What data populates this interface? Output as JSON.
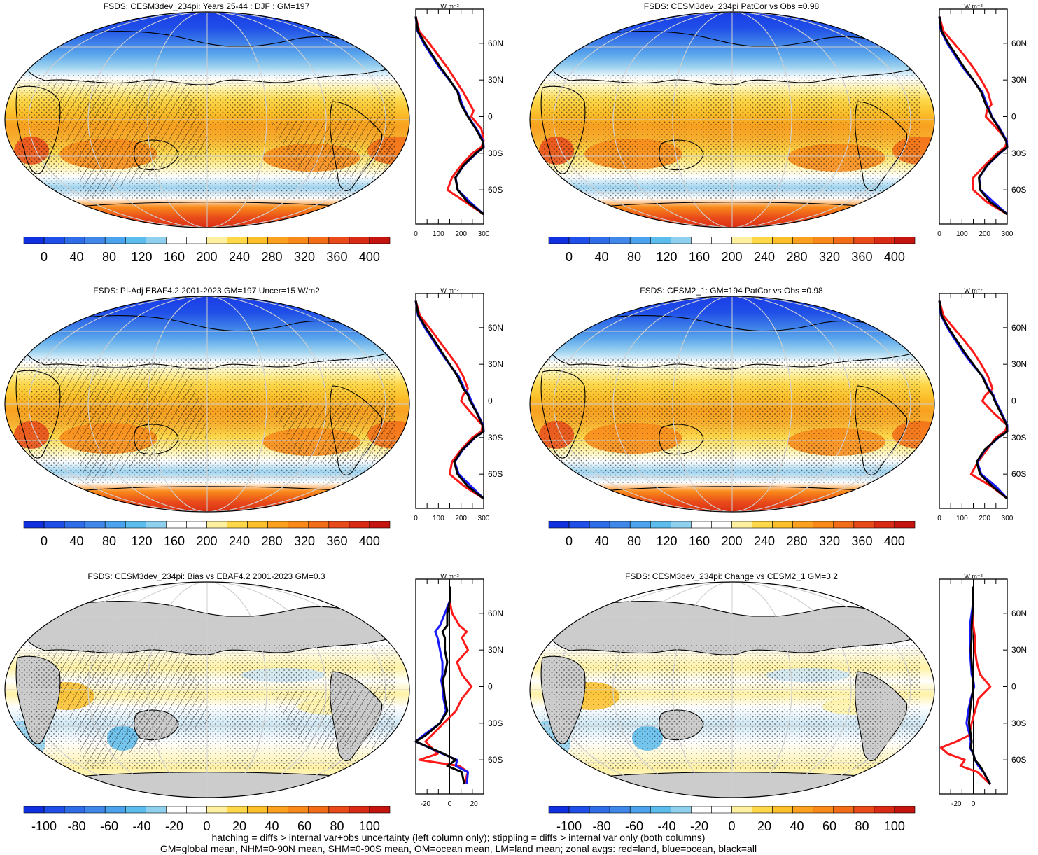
{
  "footer": {
    "line1": "hatching = diffs > internal var+obs uncertainty (left column only); stippling = diffs > internal var only (both columns)",
    "line2": "GM=global mean, NHM=0-90N mean, SHM=0-90S mean, OM=ocean mean, LM=land mean; zonal avgs: red=land, blue=ocean, black=all"
  },
  "units_label": "W m⁻²",
  "lat_labels": [
    "60N",
    "30N",
    "0",
    "30S",
    "60S"
  ],
  "colors": {
    "land": "#ff1a1a",
    "ocean": "#1a1aff",
    "all": "#000000",
    "missing": "#cccccc",
    "abs_scale": [
      "#1030e0",
      "#1f4fe8",
      "#2f6ce8",
      "#3f88ea",
      "#4aa3ec",
      "#5cbcec",
      "#8fd0ee",
      "#ffffff",
      "#ffffff",
      "#fff0a0",
      "#ffd84a",
      "#fdc02a",
      "#fca020",
      "#f98a1a",
      "#f36c18",
      "#e84a1a",
      "#d82a14",
      "#c41410"
    ],
    "diff_scale": [
      "#1030e0",
      "#1f4fe8",
      "#2f6ce8",
      "#3f88ea",
      "#4aa3ec",
      "#5cbcec",
      "#8fd0ee",
      "#ffffff",
      "#ffffff",
      "#fff0a0",
      "#ffd84a",
      "#fdc02a",
      "#fca020",
      "#f98a1a",
      "#f36c18",
      "#e84a1a",
      "#d82a14",
      "#c41410"
    ]
  },
  "chart_data": [
    {
      "type": "heatmap",
      "title": "FSDS: CESM3dev_234pi: Years 25-44 : DJF : GM=197",
      "colorbar_labels": [
        "0",
        "40",
        "80",
        "120",
        "160",
        "200",
        "240",
        "280",
        "320",
        "360",
        "400"
      ],
      "zonal": {
        "type": "line",
        "xticks": [
          "0",
          "100",
          "200",
          "300"
        ],
        "xlim": [
          0,
          300
        ],
        "lat": [
          82,
          70,
          60,
          50,
          40,
          30,
          20,
          10,
          5,
          0,
          -10,
          -20,
          -25,
          -30,
          -40,
          -50,
          -60,
          -70,
          -80
        ],
        "all": [
          0,
          10,
          40,
          75,
          110,
          150,
          185,
          200,
          215,
          230,
          265,
          295,
          300,
          265,
          210,
          175,
          185,
          230,
          300
        ],
        "ocean": [
          0,
          8,
          35,
          70,
          105,
          148,
          188,
          205,
          218,
          232,
          268,
          298,
          300,
          268,
          212,
          176,
          186,
          240,
          300
        ],
        "land": [
          0,
          15,
          60,
          100,
          140,
          175,
          210,
          240,
          255,
          245,
          290,
          300,
          290,
          250,
          200,
          160,
          140,
          220,
          300
        ]
      }
    },
    {
      "type": "heatmap",
      "title": "FSDS: CESM3dev_234pi PatCor vs Obs =0.98",
      "colorbar_labels": [
        "0",
        "40",
        "80",
        "120",
        "160",
        "200",
        "240",
        "280",
        "320",
        "360",
        "400"
      ],
      "zonal": {
        "type": "line",
        "xticks": [
          "0",
          "100",
          "200",
          "300"
        ],
        "xlim": [
          0,
          300
        ],
        "lat": [
          82,
          70,
          60,
          50,
          40,
          30,
          20,
          10,
          5,
          0,
          -10,
          -20,
          -25,
          -30,
          -40,
          -50,
          -60,
          -70,
          -80
        ],
        "all": [
          0,
          10,
          40,
          75,
          110,
          150,
          185,
          205,
          220,
          230,
          265,
          295,
          300,
          265,
          210,
          175,
          180,
          225,
          300
        ],
        "ocean": [
          0,
          8,
          35,
          70,
          105,
          148,
          190,
          210,
          222,
          232,
          268,
          298,
          300,
          268,
          212,
          176,
          182,
          240,
          300
        ],
        "land": [
          0,
          18,
          65,
          110,
          150,
          185,
          215,
          230,
          210,
          205,
          255,
          300,
          290,
          255,
          200,
          150,
          150,
          210,
          300
        ]
      }
    },
    {
      "type": "heatmap",
      "title": "FSDS: PI-Adj EBAF4.2 2001-2023 GM=197 Uncer=15 W/m2",
      "colorbar_labels": [
        "0",
        "40",
        "80",
        "120",
        "160",
        "200",
        "240",
        "280",
        "320",
        "360",
        "400"
      ],
      "zonal": {
        "type": "line",
        "xticks": [
          "0",
          "100",
          "200",
          "300"
        ],
        "xlim": [
          0,
          300
        ],
        "lat": [
          82,
          70,
          60,
          50,
          40,
          30,
          20,
          10,
          5,
          0,
          -10,
          -20,
          -25,
          -30,
          -40,
          -50,
          -60,
          -70,
          -80
        ],
        "all": [
          0,
          12,
          45,
          80,
          115,
          150,
          185,
          210,
          230,
          240,
          270,
          295,
          300,
          260,
          205,
          170,
          185,
          230,
          300
        ],
        "ocean": [
          0,
          10,
          40,
          75,
          110,
          148,
          190,
          215,
          235,
          245,
          272,
          298,
          300,
          262,
          208,
          172,
          190,
          245,
          300
        ],
        "land": [
          0,
          18,
          60,
          100,
          140,
          180,
          210,
          230,
          210,
          200,
          245,
          295,
          290,
          250,
          200,
          160,
          150,
          215,
          300
        ]
      }
    },
    {
      "type": "heatmap",
      "title": "FSDS: CESM2_1: GM=194 PatCor vs Obs =0.98",
      "colorbar_labels": [
        "0",
        "40",
        "80",
        "120",
        "160",
        "200",
        "240",
        "280",
        "320",
        "360",
        "400"
      ],
      "zonal": {
        "type": "line",
        "xticks": [
          "0",
          "100",
          "200",
          "300"
        ],
        "xlim": [
          0,
          300
        ],
        "lat": [
          82,
          70,
          60,
          50,
          40,
          30,
          20,
          10,
          5,
          0,
          -10,
          -20,
          -25,
          -30,
          -40,
          -50,
          -60,
          -70,
          -80
        ],
        "all": [
          0,
          10,
          40,
          75,
          110,
          150,
          190,
          215,
          235,
          245,
          272,
          298,
          300,
          260,
          200,
          165,
          180,
          235,
          300
        ],
        "ocean": [
          0,
          8,
          35,
          70,
          105,
          145,
          192,
          218,
          238,
          248,
          275,
          300,
          300,
          262,
          202,
          168,
          185,
          250,
          300
        ],
        "land": [
          0,
          18,
          62,
          108,
          150,
          185,
          215,
          235,
          205,
          190,
          240,
          300,
          290,
          250,
          210,
          170,
          140,
          230,
          300
        ]
      }
    },
    {
      "type": "heatmap",
      "title": "FSDS: CESM3dev_234pi: Bias vs EBAF4.2 2001-2023 GM=0.3",
      "colorbar_labels": [
        "-100",
        "-80",
        "-60",
        "-40",
        "-20",
        "0",
        "20",
        "40",
        "60",
        "80",
        "100"
      ],
      "zonal": {
        "type": "line",
        "xticks": [
          "-20",
          "0",
          "20"
        ],
        "xlim": [
          -28,
          28
        ],
        "lat": [
          82,
          70,
          60,
          50,
          45,
          40,
          30,
          20,
          10,
          5,
          0,
          -10,
          -20,
          -30,
          -40,
          -45,
          -55,
          -60,
          -65,
          -70,
          -80
        ],
        "all": [
          0,
          0,
          -2,
          -2,
          -6,
          -4,
          -4,
          -2,
          -4,
          -6,
          -5,
          -4,
          -2,
          -8,
          -20,
          -28,
          -5,
          5,
          -2,
          10,
          12
        ],
        "ocean": [
          0,
          0,
          -4,
          -8,
          -12,
          -10,
          -8,
          -6,
          -6,
          -7,
          -6,
          -5,
          -3,
          -8,
          -22,
          -28,
          -6,
          6,
          5,
          15,
          14
        ],
        "land": [
          0,
          0,
          2,
          8,
          14,
          10,
          15,
          6,
          10,
          14,
          18,
          10,
          5,
          -5,
          -15,
          -20,
          -10,
          -25,
          8,
          15,
          12
        ]
      }
    },
    {
      "type": "heatmap",
      "title": "FSDS: CESM3dev_234pi: Change vs CESM2_1 GM=3.2",
      "colorbar_labels": [
        "-100",
        "-80",
        "-60",
        "-40",
        "-20",
        "0",
        "20",
        "40",
        "60",
        "80",
        "100"
      ],
      "zonal": {
        "type": "line",
        "xticks": [
          "-20",
          "0"
        ],
        "lat": [
          82,
          70,
          60,
          50,
          40,
          30,
          20,
          10,
          5,
          0,
          -10,
          -20,
          -30,
          -40,
          -45,
          -50,
          -55,
          -60,
          -65,
          -70,
          -80
        ],
        "xlim": [
          -40,
          40
        ],
        "all": [
          0,
          0,
          -1,
          -2,
          -2,
          -3,
          -2,
          -1,
          0,
          0,
          -2,
          -4,
          -5,
          -3,
          -2,
          -3,
          0,
          2,
          8,
          12,
          20
        ],
        "ocean": [
          0,
          0,
          -2,
          -4,
          -4,
          -4,
          -3,
          -2,
          0,
          1,
          -3,
          -6,
          -8,
          -4,
          -3,
          -4,
          0,
          2,
          6,
          12,
          20
        ],
        "land": [
          0,
          0,
          0,
          0,
          2,
          2,
          4,
          8,
          14,
          20,
          6,
          2,
          -2,
          -5,
          -20,
          -38,
          -30,
          -10,
          -15,
          5,
          20
        ]
      }
    }
  ]
}
